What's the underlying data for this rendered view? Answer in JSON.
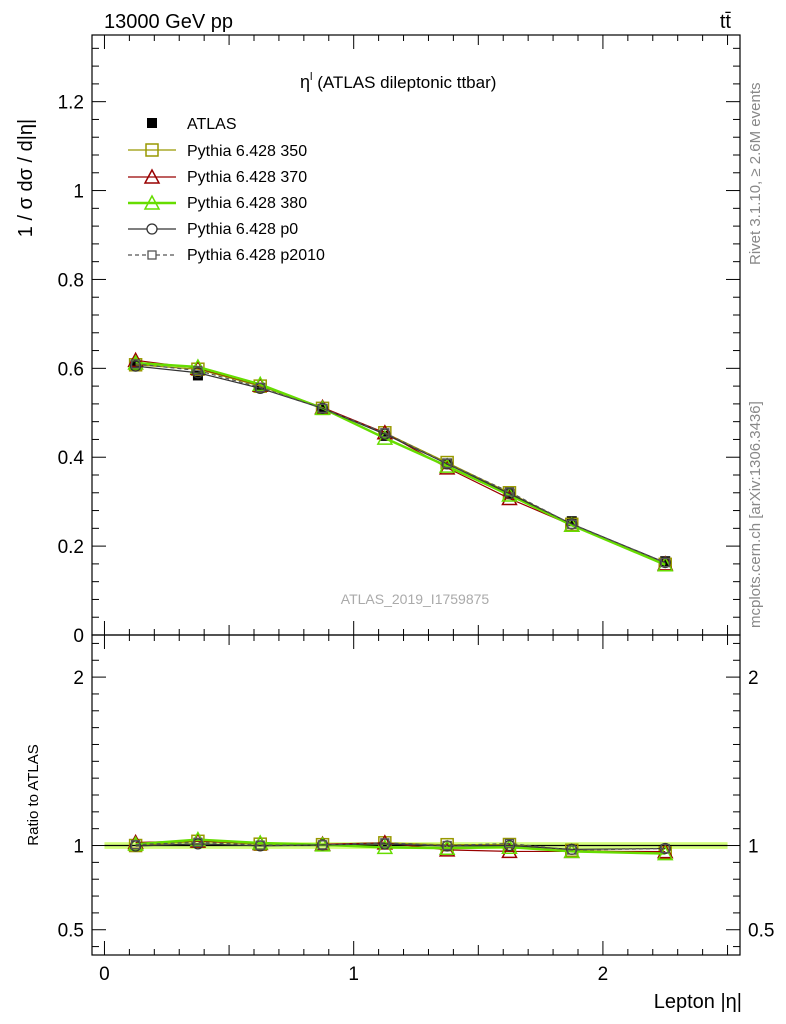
{
  "header": {
    "energy_label": "13000 GeV pp",
    "process_label": "tt̄",
    "side_rivet": "Rivet 3.1.10, ≥ 2.6M events",
    "side_mcplots": "mcplots.cern.ch [arXiv:1306.3436]",
    "watermark": "ATLAS_2019_I1759875"
  },
  "chart_data": [
    {
      "type": "line",
      "panel": "main",
      "title": "η",
      "title_sup": "l",
      "title_rest": " (ATLAS dileptonic ttbar)",
      "ylabel": "1 / σ  dσ / d|η|",
      "xlabel": "",
      "xlim": [
        -0.05,
        2.55
      ],
      "ylim": [
        0,
        1.35
      ],
      "y_ticks": [
        0,
        0.2,
        0.4,
        0.6,
        0.8,
        1,
        1.2
      ],
      "y_tick_labels": [
        "0",
        "0.2",
        "0.4",
        "0.6",
        "0.8",
        "1",
        "1.2"
      ],
      "x": [
        0.125,
        0.375,
        0.625,
        0.875,
        1.125,
        1.375,
        1.625,
        1.875,
        2.25
      ],
      "legend_position": "top-left",
      "grid": false,
      "series": [
        {
          "name": "ATLAS",
          "color": "#000000",
          "marker": "filled-square",
          "line": "none",
          "values": [
            0.607,
            0.584,
            0.556,
            0.508,
            0.448,
            0.386,
            0.318,
            0.256,
            0.166
          ]
        },
        {
          "name": "Pythia 6.428 350",
          "color": "#999900",
          "marker": "open-square",
          "line": "solid",
          "values": [
            0.608,
            0.598,
            0.56,
            0.51,
            0.455,
            0.388,
            0.32,
            0.249,
            0.159
          ]
        },
        {
          "name": "Pythia 6.428 370",
          "color": "#990000",
          "marker": "open-triangle",
          "line": "solid",
          "values": [
            0.618,
            0.6,
            0.562,
            0.512,
            0.455,
            0.376,
            0.307,
            0.247,
            0.16
          ]
        },
        {
          "name": "Pythia 6.428 380",
          "color": "#66dd00",
          "marker": "open-triangle",
          "line": "solid-thick",
          "values": [
            0.612,
            0.603,
            0.564,
            0.51,
            0.443,
            0.38,
            0.315,
            0.247,
            0.158
          ]
        },
        {
          "name": "Pythia 6.428 p0",
          "color": "#333333",
          "marker": "open-circle",
          "line": "solid",
          "values": [
            0.605,
            0.59,
            0.555,
            0.51,
            0.452,
            0.385,
            0.318,
            0.25,
            0.163
          ]
        },
        {
          "name": "Pythia 6.428 p2010",
          "color": "#555555",
          "marker": "open-square-small",
          "line": "dashed",
          "values": [
            0.61,
            0.595,
            0.557,
            0.51,
            0.455,
            0.386,
            0.322,
            0.249,
            0.163
          ]
        }
      ]
    },
    {
      "type": "line",
      "panel": "ratio",
      "title": "",
      "ylabel": "Ratio to ATLAS",
      "xlabel": "Lepton |η|",
      "xlim": [
        -0.05,
        2.55
      ],
      "ylim": [
        0.35,
        2.25
      ],
      "y_ticks": [
        0.5,
        1,
        2
      ],
      "y_tick_labels": [
        "0.5",
        "1",
        "2"
      ],
      "x_ticks": [
        0,
        1,
        2
      ],
      "x_tick_labels": [
        "0",
        "1",
        "2"
      ],
      "x": [
        0.125,
        0.375,
        0.625,
        0.875,
        1.125,
        1.375,
        1.625,
        1.875,
        2.25
      ],
      "reference_band": {
        "low": 0.98,
        "high": 1.02,
        "color": "#ccff66"
      },
      "series": [
        {
          "name": "Pythia 6.428 350",
          "color": "#999900",
          "marker": "open-square",
          "line": "solid",
          "values": [
            1.0,
            1.025,
            1.008,
            1.005,
            1.016,
            1.005,
            1.006,
            0.972,
            0.957
          ]
        },
        {
          "name": "Pythia 6.428 370",
          "color": "#990000",
          "marker": "open-triangle",
          "line": "solid",
          "values": [
            1.018,
            1.027,
            1.012,
            1.008,
            1.016,
            0.974,
            0.965,
            0.965,
            0.964
          ]
        },
        {
          "name": "Pythia 6.428 380",
          "color": "#66dd00",
          "marker": "open-triangle",
          "line": "solid-thick",
          "values": [
            1.008,
            1.035,
            1.015,
            1.004,
            0.989,
            0.984,
            0.99,
            0.965,
            0.952
          ]
        },
        {
          "name": "Pythia 6.428 p0",
          "color": "#333333",
          "marker": "open-circle",
          "line": "solid",
          "values": [
            0.997,
            1.01,
            0.998,
            1.004,
            1.009,
            0.997,
            1.0,
            0.977,
            0.982
          ]
        },
        {
          "name": "Pythia 6.428 p2010",
          "color": "#555555",
          "marker": "open-square-small",
          "line": "dashed",
          "values": [
            1.005,
            1.019,
            1.002,
            1.004,
            1.016,
            1.0,
            1.012,
            0.973,
            0.982
          ]
        }
      ]
    }
  ]
}
